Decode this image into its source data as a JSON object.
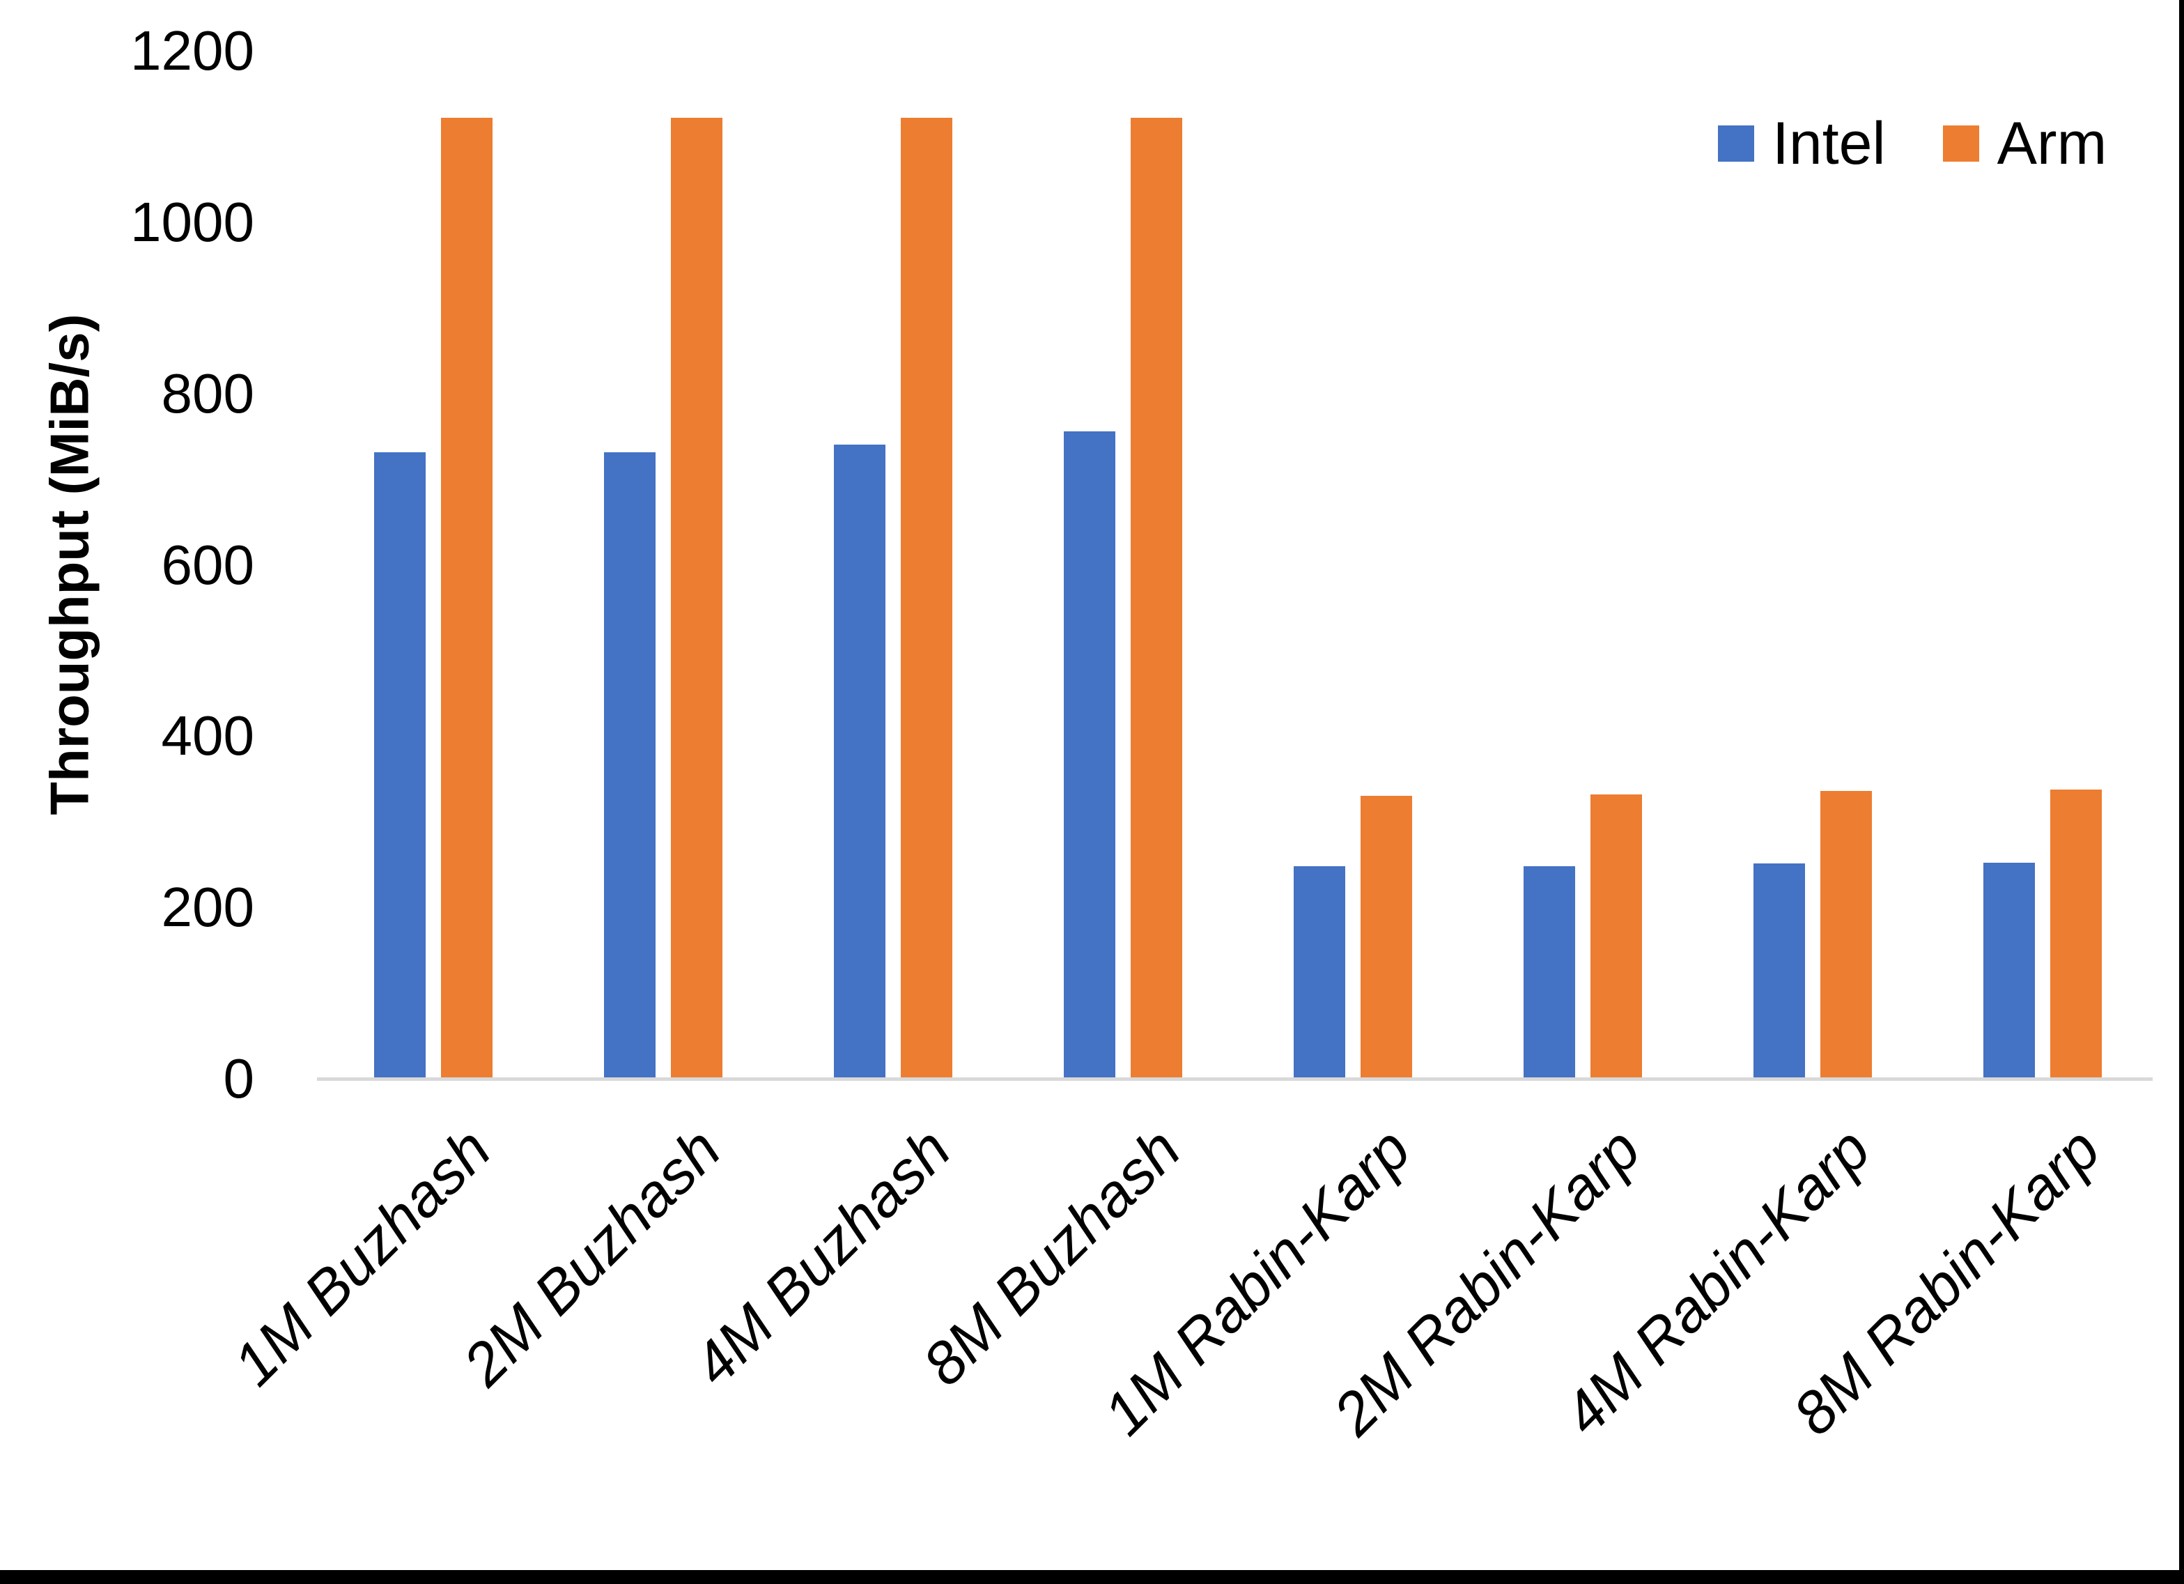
{
  "chart_data": {
    "type": "bar",
    "title": "",
    "xlabel": "",
    "ylabel": "Throughput (MiB/s)",
    "ylim": [
      0,
      1200
    ],
    "ytick_step": 200,
    "yticks": [
      "0",
      "200",
      "400",
      "600",
      "800",
      "1000",
      "1200"
    ],
    "grid": false,
    "legend_position": "top-right",
    "axis_line_color": "#d9d9d9",
    "categories": [
      "1M Buzhash",
      "2M Buzhash",
      "4M Buzhash",
      "8M Buzhash",
      "1M Rabin-Karp",
      "2M Rabin-Karp",
      "4M Rabin-Karp",
      "8M Rabin-Karp"
    ],
    "series": [
      {
        "name": "Intel",
        "color": "#4472c4",
        "values": [
          731,
          731,
          740,
          756,
          248,
          248,
          251,
          252
        ]
      },
      {
        "name": "Arm",
        "color": "#ed7d31",
        "values": [
          1122,
          1122,
          1122,
          1122,
          330,
          332,
          336,
          338
        ]
      }
    ]
  },
  "frame": {
    "edge_color": "#000000",
    "background": "#ffffff"
  }
}
